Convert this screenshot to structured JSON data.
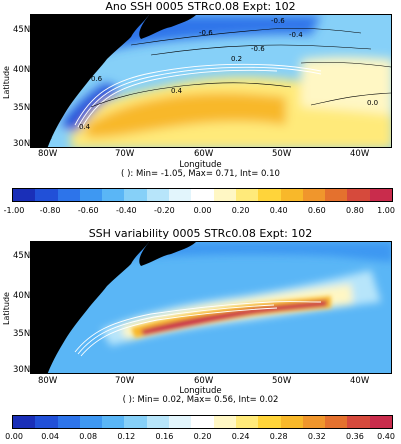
{
  "chart_data": [
    {
      "type": "heatmap",
      "title": "Ano SSH 0005 STRc0.08 Expt: 102",
      "xlabel": "Longitude",
      "ylabel": "Latitude",
      "x_ticks": [
        "80W",
        "70W",
        "60W",
        "50W",
        "40W"
      ],
      "y_ticks": [
        "45N",
        "40N",
        "35N",
        "30N"
      ],
      "xlim": [
        -82,
        -36
      ],
      "ylim": [
        30,
        47
      ],
      "stats": "( ): Min= -1.05, Max= 0.71, Int= 0.10",
      "contour_labels": [
        "-0.6",
        "-0.6",
        "-0.4",
        "0.2",
        "-0.6",
        "0.4",
        "0.4",
        "0.6",
        "0.2",
        "0.0"
      ],
      "colorbar": {
        "min": -1.0,
        "max": 1.0,
        "tick_labels": [
          "-1.00",
          "-0.80",
          "-0.60",
          "-0.40",
          "-0.20",
          "0.00",
          "0.20",
          "0.40",
          "0.60",
          "0.80",
          "1.00"
        ]
      }
    },
    {
      "type": "heatmap",
      "title": "SSH variability 0005 STRc0.08 Expt: 102",
      "xlabel": "Longitude",
      "ylabel": "Latitude",
      "x_ticks": [
        "80W",
        "70W",
        "60W",
        "50W",
        "40W"
      ],
      "y_ticks": [
        "45N",
        "40N",
        "35N",
        "30N"
      ],
      "xlim": [
        -82,
        -36
      ],
      "ylim": [
        30,
        47
      ],
      "stats": "( ): Min= 0.02, Max= 0.56, Int= 0.02",
      "colorbar": {
        "min": 0.0,
        "max": 0.4,
        "tick_labels": [
          "0.00",
          "0.04",
          "0.08",
          "0.12",
          "0.16",
          "0.20",
          "0.24",
          "0.28",
          "0.32",
          "0.36",
          "0.40"
        ]
      }
    }
  ],
  "colors": {
    "land": "#000000",
    "scale": [
      "#1a2fb8",
      "#2150d8",
      "#2d74ea",
      "#3e98f2",
      "#5ab6f6",
      "#86d0f8",
      "#b7e5fa",
      "#e2f5fc",
      "#ffffff",
      "#fff7c4",
      "#ffea7a",
      "#ffd43a",
      "#f8b82a",
      "#f0962c",
      "#e4712e",
      "#d64a3c",
      "#c92c4c"
    ]
  }
}
